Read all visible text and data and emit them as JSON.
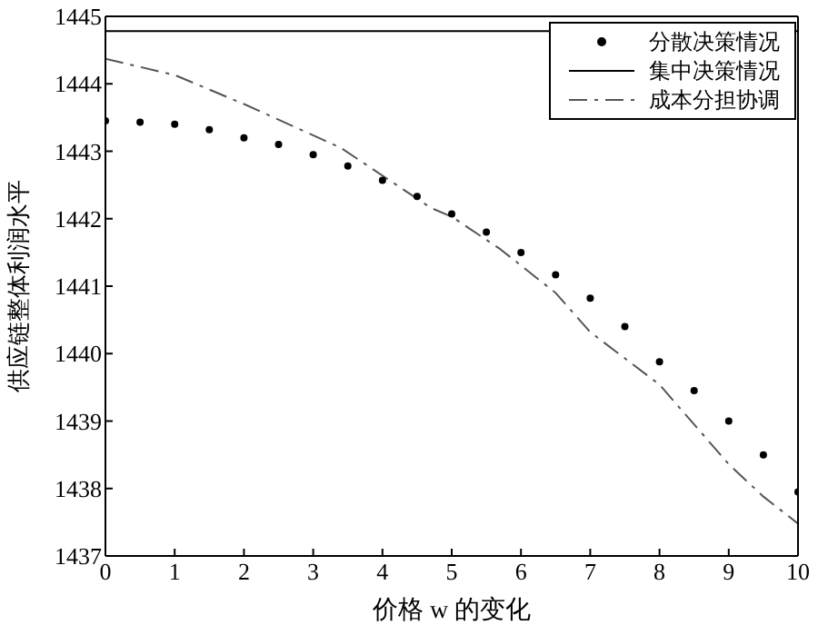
{
  "chart_data": {
    "type": "line",
    "xlabel": "价格 w 的变化",
    "ylabel": "供应链整体利润水平",
    "xlim": [
      0,
      10
    ],
    "ylim": [
      1437,
      1445
    ],
    "xticks": [
      0,
      1,
      2,
      3,
      4,
      5,
      6,
      7,
      8,
      9,
      10
    ],
    "yticks": [
      1437,
      1438,
      1439,
      1440,
      1441,
      1442,
      1443,
      1444,
      1445
    ],
    "legend": "top right",
    "series": [
      {
        "name": "分散决策情况",
        "type": "scatter",
        "marker": "circle",
        "color": "#000000",
        "x": [
          0,
          0.5,
          1,
          1.5,
          2,
          2.5,
          3,
          3.5,
          4,
          4.5,
          5,
          5.5,
          6,
          6.5,
          7,
          7.5,
          8,
          8.5,
          9,
          9.5,
          10
        ],
        "values": [
          1443.45,
          1443.43,
          1443.4,
          1443.32,
          1443.2,
          1443.1,
          1442.95,
          1442.78,
          1442.57,
          1442.33,
          1442.07,
          1441.8,
          1441.5,
          1441.17,
          1440.82,
          1440.4,
          1439.88,
          1439.45,
          1439.0,
          1438.5,
          1437.95
        ]
      },
      {
        "name": "集中决策情况",
        "line_style": "solid",
        "color": "#000000",
        "x": [
          0,
          10
        ],
        "values": [
          1444.78,
          1444.78
        ]
      },
      {
        "name": "成本分担协调",
        "line_style": "dashed",
        "color": "#555555",
        "x": [
          0,
          1,
          2,
          3.4,
          4.7,
          5,
          5.7,
          6.5,
          7,
          8,
          9,
          9.5,
          10
        ],
        "values": [
          1444.37,
          1444.13,
          1443.7,
          1443.05,
          1442.16,
          1442.03,
          1441.55,
          1440.9,
          1440.32,
          1439.54,
          1438.36,
          1437.88,
          1437.48
        ]
      }
    ]
  }
}
